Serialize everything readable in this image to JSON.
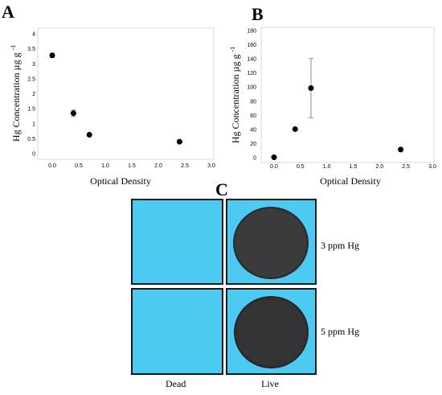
{
  "panels": {
    "a_label": "A",
    "b_label": "B",
    "c_label": "C"
  },
  "chart_data": [
    {
      "type": "scatter",
      "panel": "A",
      "xlabel": "Optical Density",
      "ylabel": "Hg Concentration µg g",
      "ylabel_exponent": "-1",
      "xlim": [
        0,
        3
      ],
      "ylim": [
        0,
        4
      ],
      "x_ticks": [
        "0.0",
        "0.5",
        "1.0",
        "1.5",
        "2.0",
        "2.5",
        "3.0"
      ],
      "y_ticks": [
        "0",
        "0.5",
        "1",
        "1.5",
        "2",
        "2.5",
        "3",
        "3.5",
        "4"
      ],
      "grid": false,
      "points": [
        {
          "x": 0.0,
          "y": 3.28,
          "err": 0.07
        },
        {
          "x": 0.4,
          "y": 1.35,
          "err": 0.11
        },
        {
          "x": 0.7,
          "y": 0.63,
          "err": 0.0
        },
        {
          "x": 2.4,
          "y": 0.4,
          "err": 0.0
        }
      ]
    },
    {
      "type": "scatter",
      "panel": "B",
      "xlabel": "Optical Density",
      "ylabel": "Hg Concentration µg g",
      "ylabel_exponent": "-1",
      "xlim": [
        0,
        3
      ],
      "ylim": [
        0,
        180
      ],
      "x_ticks": [
        "0.0",
        "0.5",
        "1.0",
        "1.5",
        "2.0",
        "2.5",
        "3.0"
      ],
      "y_ticks": [
        "0",
        "20",
        "40",
        "60",
        "80",
        "100",
        "120",
        "140",
        "160",
        "180"
      ],
      "grid": false,
      "points": [
        {
          "x": 0.0,
          "y": 0.5,
          "err": 0.0
        },
        {
          "x": 0.4,
          "y": 40.5,
          "err": 0.0
        },
        {
          "x": 0.7,
          "y": 98.5,
          "err": 42.0
        },
        {
          "x": 2.4,
          "y": 11.5,
          "err": 0.0
        }
      ]
    }
  ],
  "panel_c": {
    "row_labels": [
      "3 ppm Hg",
      "5 ppm Hg"
    ],
    "column_labels": [
      "Dead",
      "Live"
    ]
  }
}
